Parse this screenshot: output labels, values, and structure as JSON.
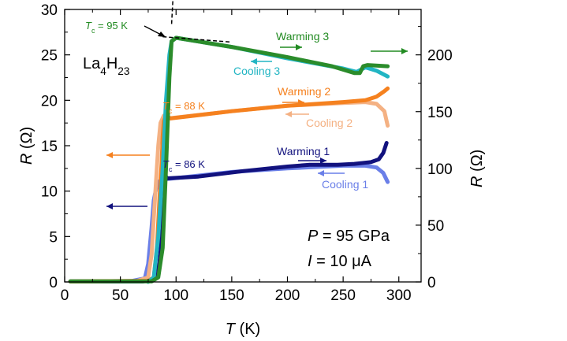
{
  "chart_data": {
    "type": "line",
    "xlabel": {
      "symbol": "T",
      "unit": " (K)"
    },
    "ylabel": {
      "symbol": "R",
      "unit": " (Ω)"
    },
    "ylabel_right": {
      "symbol": "R",
      "unit": " (Ω)"
    },
    "xlim": [
      0,
      320
    ],
    "ylim": [
      0,
      30
    ],
    "ylim_right": [
      0,
      240
    ],
    "x_ticks": [
      "0",
      "50",
      "100",
      "150",
      "200",
      "250",
      "300"
    ],
    "y_ticks": [
      "0",
      "5",
      "10",
      "15",
      "20",
      "25",
      "30"
    ],
    "y_right_ticks": [
      "0",
      "50",
      "100",
      "150",
      "200"
    ],
    "grid": false,
    "compound": {
      "a": "La",
      "b": "4",
      "c": "H",
      "d": "23"
    },
    "conditions": {
      "pressure": {
        "symbol": "P",
        "value": " = 95 GPa"
      },
      "current": {
        "symbol": "I",
        "value": " = 10 μA"
      }
    },
    "tc_labels": [
      {
        "text": "= 95 K",
        "color": "#228b22",
        "sub": "c",
        "main": "T"
      },
      {
        "text": "= 88 K",
        "color": "#f5811f",
        "sub": "c",
        "main": "T"
      },
      {
        "text": "= 86 K",
        "color": "#12127e",
        "sub": "c",
        "main": "T"
      }
    ],
    "series_labels": {
      "warming3": "Warming 3",
      "cooling3": "Cooling 3",
      "warming2": "Warming 2",
      "cooling2": "Cooling 2",
      "warming1": "Warming 1",
      "cooling1": "Cooling 1"
    },
    "series": [
      {
        "name": "Cooling 1",
        "axis": "left",
        "color": "#6a7fe8",
        "points": [
          [
            5,
            0.05
          ],
          [
            60,
            0.1
          ],
          [
            72,
            0.4
          ],
          [
            75,
            2
          ],
          [
            78,
            6
          ],
          [
            80,
            9
          ],
          [
            83,
            10.8
          ],
          [
            86,
            11.2
          ],
          [
            90,
            11.3
          ],
          [
            150,
            12.1
          ],
          [
            200,
            12.5
          ],
          [
            250,
            12.8
          ],
          [
            270,
            12.8
          ],
          [
            280,
            12.6
          ],
          [
            286,
            12.0
          ],
          [
            290,
            11.0
          ]
        ]
      },
      {
        "name": "Warming 1",
        "axis": "left",
        "color": "#12127e",
        "points": [
          [
            5,
            0.05
          ],
          [
            70,
            0.05
          ],
          [
            80,
            0.2
          ],
          [
            85,
            2
          ],
          [
            88,
            6
          ],
          [
            89,
            10
          ],
          [
            90,
            11.8
          ],
          [
            92,
            11.4
          ],
          [
            120,
            11.6
          ],
          [
            160,
            12.2
          ],
          [
            200,
            12.7
          ],
          [
            220,
            12.9
          ],
          [
            245,
            12.9
          ],
          [
            260,
            13.0
          ],
          [
            275,
            13.2
          ],
          [
            282,
            13.5
          ],
          [
            286,
            14.2
          ],
          [
            289,
            15.3
          ]
        ]
      },
      {
        "name": "Cooling 2",
        "axis": "left",
        "color": "#f4b183",
        "points": [
          [
            5,
            0.05
          ],
          [
            65,
            0.1
          ],
          [
            75,
            0.5
          ],
          [
            78,
            3
          ],
          [
            80,
            7
          ],
          [
            82,
            11
          ],
          [
            84,
            15
          ],
          [
            86,
            17.5
          ],
          [
            89,
            18.3
          ],
          [
            93,
            18.0
          ],
          [
            150,
            18.8
          ],
          [
            200,
            19.4
          ],
          [
            250,
            19.7
          ],
          [
            270,
            19.8
          ],
          [
            280,
            19.6
          ],
          [
            287,
            18.8
          ],
          [
            290,
            17.2
          ]
        ]
      },
      {
        "name": "Warming 2",
        "axis": "left",
        "color": "#f5811f",
        "points": [
          [
            5,
            0.05
          ],
          [
            75,
            0.1
          ],
          [
            80,
            0.5
          ],
          [
            83,
            4
          ],
          [
            85,
            9
          ],
          [
            87,
            13
          ],
          [
            88,
            16
          ],
          [
            89,
            17.7
          ],
          [
            91,
            18.3
          ],
          [
            95,
            18.0
          ],
          [
            150,
            18.8
          ],
          [
            200,
            19.4
          ],
          [
            250,
            19.8
          ],
          [
            270,
            20.0
          ],
          [
            280,
            20.4
          ],
          [
            287,
            21.0
          ],
          [
            290,
            21.3
          ]
        ]
      },
      {
        "name": "Cooling 3",
        "axis": "right",
        "color": "#22b5c3",
        "points": [
          [
            75,
            0
          ],
          [
            80,
            4
          ],
          [
            84,
            40
          ],
          [
            88,
            100
          ],
          [
            91,
            160
          ],
          [
            94,
            200
          ],
          [
            96,
            212
          ],
          [
            100,
            215
          ],
          [
            150,
            207
          ],
          [
            200,
            197
          ],
          [
            250,
            188
          ],
          [
            262,
            185
          ],
          [
            270,
            189
          ],
          [
            280,
            186
          ],
          [
            290,
            181
          ]
        ]
      },
      {
        "name": "Warming 3",
        "axis": "right",
        "color": "#2b8c2b",
        "points": [
          [
            5,
            0.5
          ],
          [
            60,
            0.5
          ],
          [
            78,
            0.5
          ],
          [
            84,
            4
          ],
          [
            88,
            30
          ],
          [
            91,
            100
          ],
          [
            94,
            180
          ],
          [
            96,
            212
          ],
          [
            100,
            215
          ],
          [
            150,
            207
          ],
          [
            200,
            198
          ],
          [
            240,
            190
          ],
          [
            260,
            184
          ],
          [
            265,
            184
          ],
          [
            268,
            190
          ],
          [
            272,
            191
          ],
          [
            290,
            190
          ]
        ]
      }
    ],
    "annotations": {
      "tc_fit_line": {
        "points": [
          [
            96,
            28.4
          ],
          [
            98,
            33
          ]
        ],
        "note": "dashed fit near Tc"
      }
    }
  }
}
